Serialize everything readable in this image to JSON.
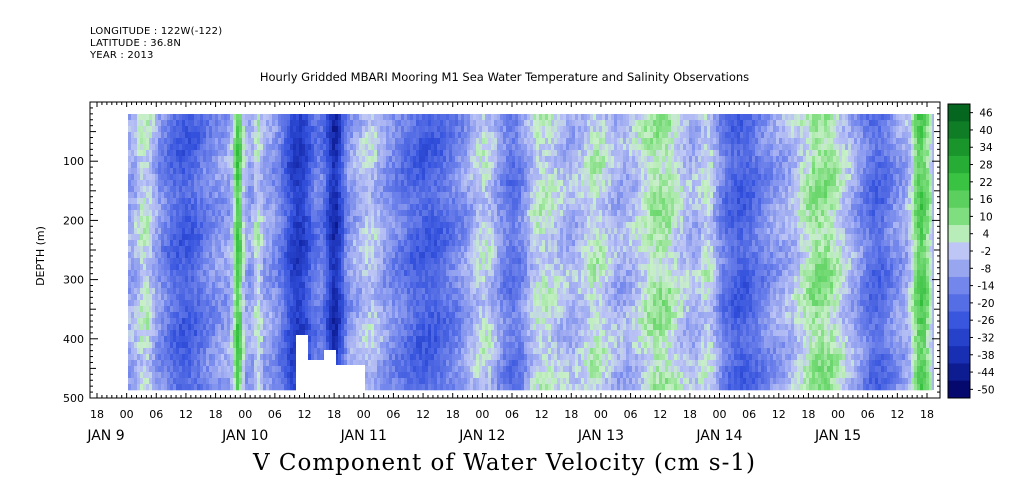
{
  "header": {
    "longitude": "LONGITUDE : 122W(-122)",
    "latitude": "LATITUDE : 36.8N",
    "year": "YEAR : 2013"
  },
  "title": "Hourly Gridded MBARI Mooring M1 Sea Water Temperature and Salinity Observations",
  "bottom_title": "V Component of Water Velocity (cm s-1)",
  "colors": {
    "negative_dark": "#00005a",
    "negative_mid": "#3c5ae6",
    "negative_light": "#c8cdf5",
    "positive_light": "#c8f0c8",
    "positive_mid": "#3cc83c",
    "positive_dark": "#005a1e"
  },
  "chart_data": {
    "type": "heatmap",
    "ylabel": "DEPTH (m)",
    "ylim": [
      500,
      0
    ],
    "y_tick_labels": [
      "100",
      "200",
      "300",
      "400",
      "500"
    ],
    "y_ticks": [
      100,
      200,
      300,
      400,
      500
    ],
    "x_tick_hours": [
      "18",
      "00",
      "06",
      "12",
      "18",
      "00",
      "06",
      "12",
      "18",
      "00",
      "06",
      "12",
      "18",
      "00",
      "06",
      "12",
      "18",
      "00",
      "06",
      "12",
      "18",
      "00",
      "06",
      "12",
      "18",
      "00",
      "06",
      "12",
      "18"
    ],
    "x_day_labels": [
      "JAN  9",
      "JAN 10",
      "JAN 11",
      "JAN 12",
      "JAN 13",
      "JAN 14",
      "JAN 15"
    ],
    "colorbar_labels": [
      "46",
      "40",
      "34",
      "28",
      "22",
      "16",
      "10",
      "4",
      "-2",
      "-8",
      "-14",
      "-20",
      "-26",
      "-32",
      "-38",
      "-44",
      "-50"
    ],
    "colorbar_range": [
      -50,
      46
    ],
    "value_summary": [
      {
        "period": "JAN 9 18 - JAN 10 00",
        "v": null
      },
      {
        "period": "JAN 10 00 - JAN 10 18",
        "v": -12
      },
      {
        "period": "JAN 10 20",
        "v": 20
      },
      {
        "period": "JAN 11 00 - JAN 11 18",
        "v": -20
      },
      {
        "period": "JAN 12 00 - JAN 12 18",
        "v": -10
      },
      {
        "period": "JAN 13 00 - JAN 13 12",
        "v": 8
      },
      {
        "period": "JAN 13 18 - JAN 14 00",
        "v": -14
      },
      {
        "period": "JAN 14 06 - JAN 14 12",
        "v": 16
      },
      {
        "period": "JAN 14 18 - JAN 15 06",
        "v": -12
      },
      {
        "period": "JAN 15 06 - JAN 15 12",
        "v": 14
      },
      {
        "period": "JAN 15 22",
        "v": 22
      }
    ]
  }
}
